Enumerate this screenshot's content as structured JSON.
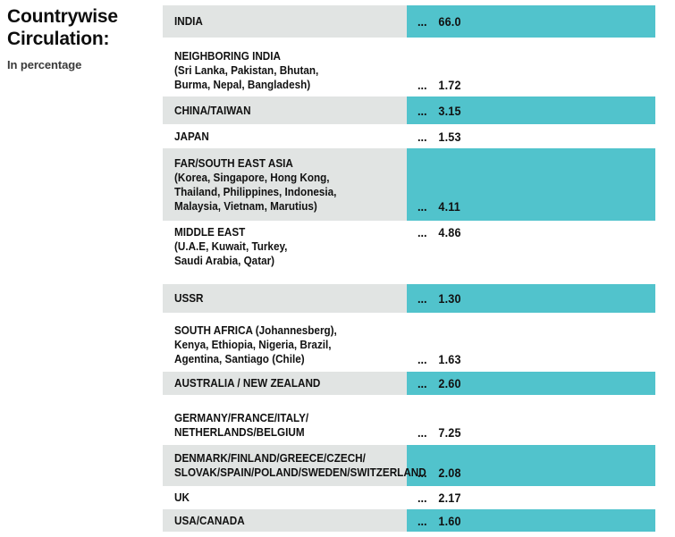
{
  "header": {
    "title": "Countrywise\nCirculation:",
    "subtitle": "In percentage"
  },
  "table": {
    "dots": "...",
    "rows": [
      {
        "label": "INDIA",
        "value": "66.0"
      },
      {
        "label": "NEIGHBORING INDIA\n(Sri Lanka, Pakistan, Bhutan,\nBurma, Nepal, Bangladesh)",
        "value": "1.72"
      },
      {
        "label": "CHINA/TAIWAN",
        "value": "3.15"
      },
      {
        "label": "JAPAN",
        "value": "1.53"
      },
      {
        "label": "FAR/SOUTH EAST ASIA\n(Korea, Singapore, Hong Kong,\nThailand, Philippines, Indonesia,\nMalaysia, Vietnam, Marutius)",
        "value": "4.11"
      },
      {
        "label": "MIDDLE EAST\n(U.A.E, Kuwait, Turkey,\nSaudi Arabia, Qatar)",
        "value": "4.86"
      },
      {
        "label": "USSR",
        "value": "1.30"
      },
      {
        "label": "SOUTH AFRICA (Johannesberg),\nKenya, Ethiopia, Nigeria, Brazil,\nAgentina, Santiago (Chile)",
        "value": "1.63"
      },
      {
        "label": "AUSTRALIA / NEW ZEALAND",
        "value": "2.60"
      },
      {
        "label": "GERMANY/FRANCE/ITALY/\nNETHERLANDS/BELGIUM",
        "value": "7.25"
      },
      {
        "label": "DENMARK/FINLAND/GREECE/CZECH/\nSLOVAK/SPAIN/POLAND/SWEDEN/SWITZERLAND",
        "value": "2.08"
      },
      {
        "label": "UK",
        "value": "2.17"
      },
      {
        "label": "USA/CANADA",
        "value": "1.60"
      }
    ]
  },
  "colors": {
    "highlight_teal": "#51C3CC",
    "row_gray": "#E1E4E3",
    "text": "#111111"
  },
  "chart_data": {
    "type": "table",
    "title": "Countrywise Circulation:",
    "subtitle": "In percentage",
    "unit": "percent",
    "categories": [
      "INDIA",
      "NEIGHBORING INDIA (Sri Lanka, Pakistan, Bhutan, Burma, Nepal, Bangladesh)",
      "CHINA/TAIWAN",
      "JAPAN",
      "FAR/SOUTH EAST ASIA (Korea, Singapore, Hong Kong, Thailand, Philippines, Indonesia, Malaysia, Vietnam, Marutius)",
      "MIDDLE EAST (U.A.E, Kuwait, Turkey, Saudi Arabia, Qatar)",
      "USSR",
      "SOUTH AFRICA (Johannesberg), Kenya, Ethiopia, Nigeria, Brazil, Agentina, Santiago (Chile)",
      "AUSTRALIA / NEW ZEALAND",
      "GERMANY/FRANCE/ITALY/NETHERLANDS/BELGIUM",
      "DENMARK/FINLAND/GREECE/CZECH/SLOVAK/SPAIN/POLAND/SWEDEN/SWITZERLAND",
      "UK",
      "USA/CANADA"
    ],
    "values": [
      66.0,
      1.72,
      3.15,
      1.53,
      4.11,
      4.86,
      1.3,
      1.63,
      2.6,
      7.25,
      2.08,
      2.17,
      1.6
    ],
    "highlighted_row_indices": [
      0,
      2,
      4,
      6,
      8,
      10,
      12
    ],
    "legend_position": "none",
    "grid": false
  }
}
